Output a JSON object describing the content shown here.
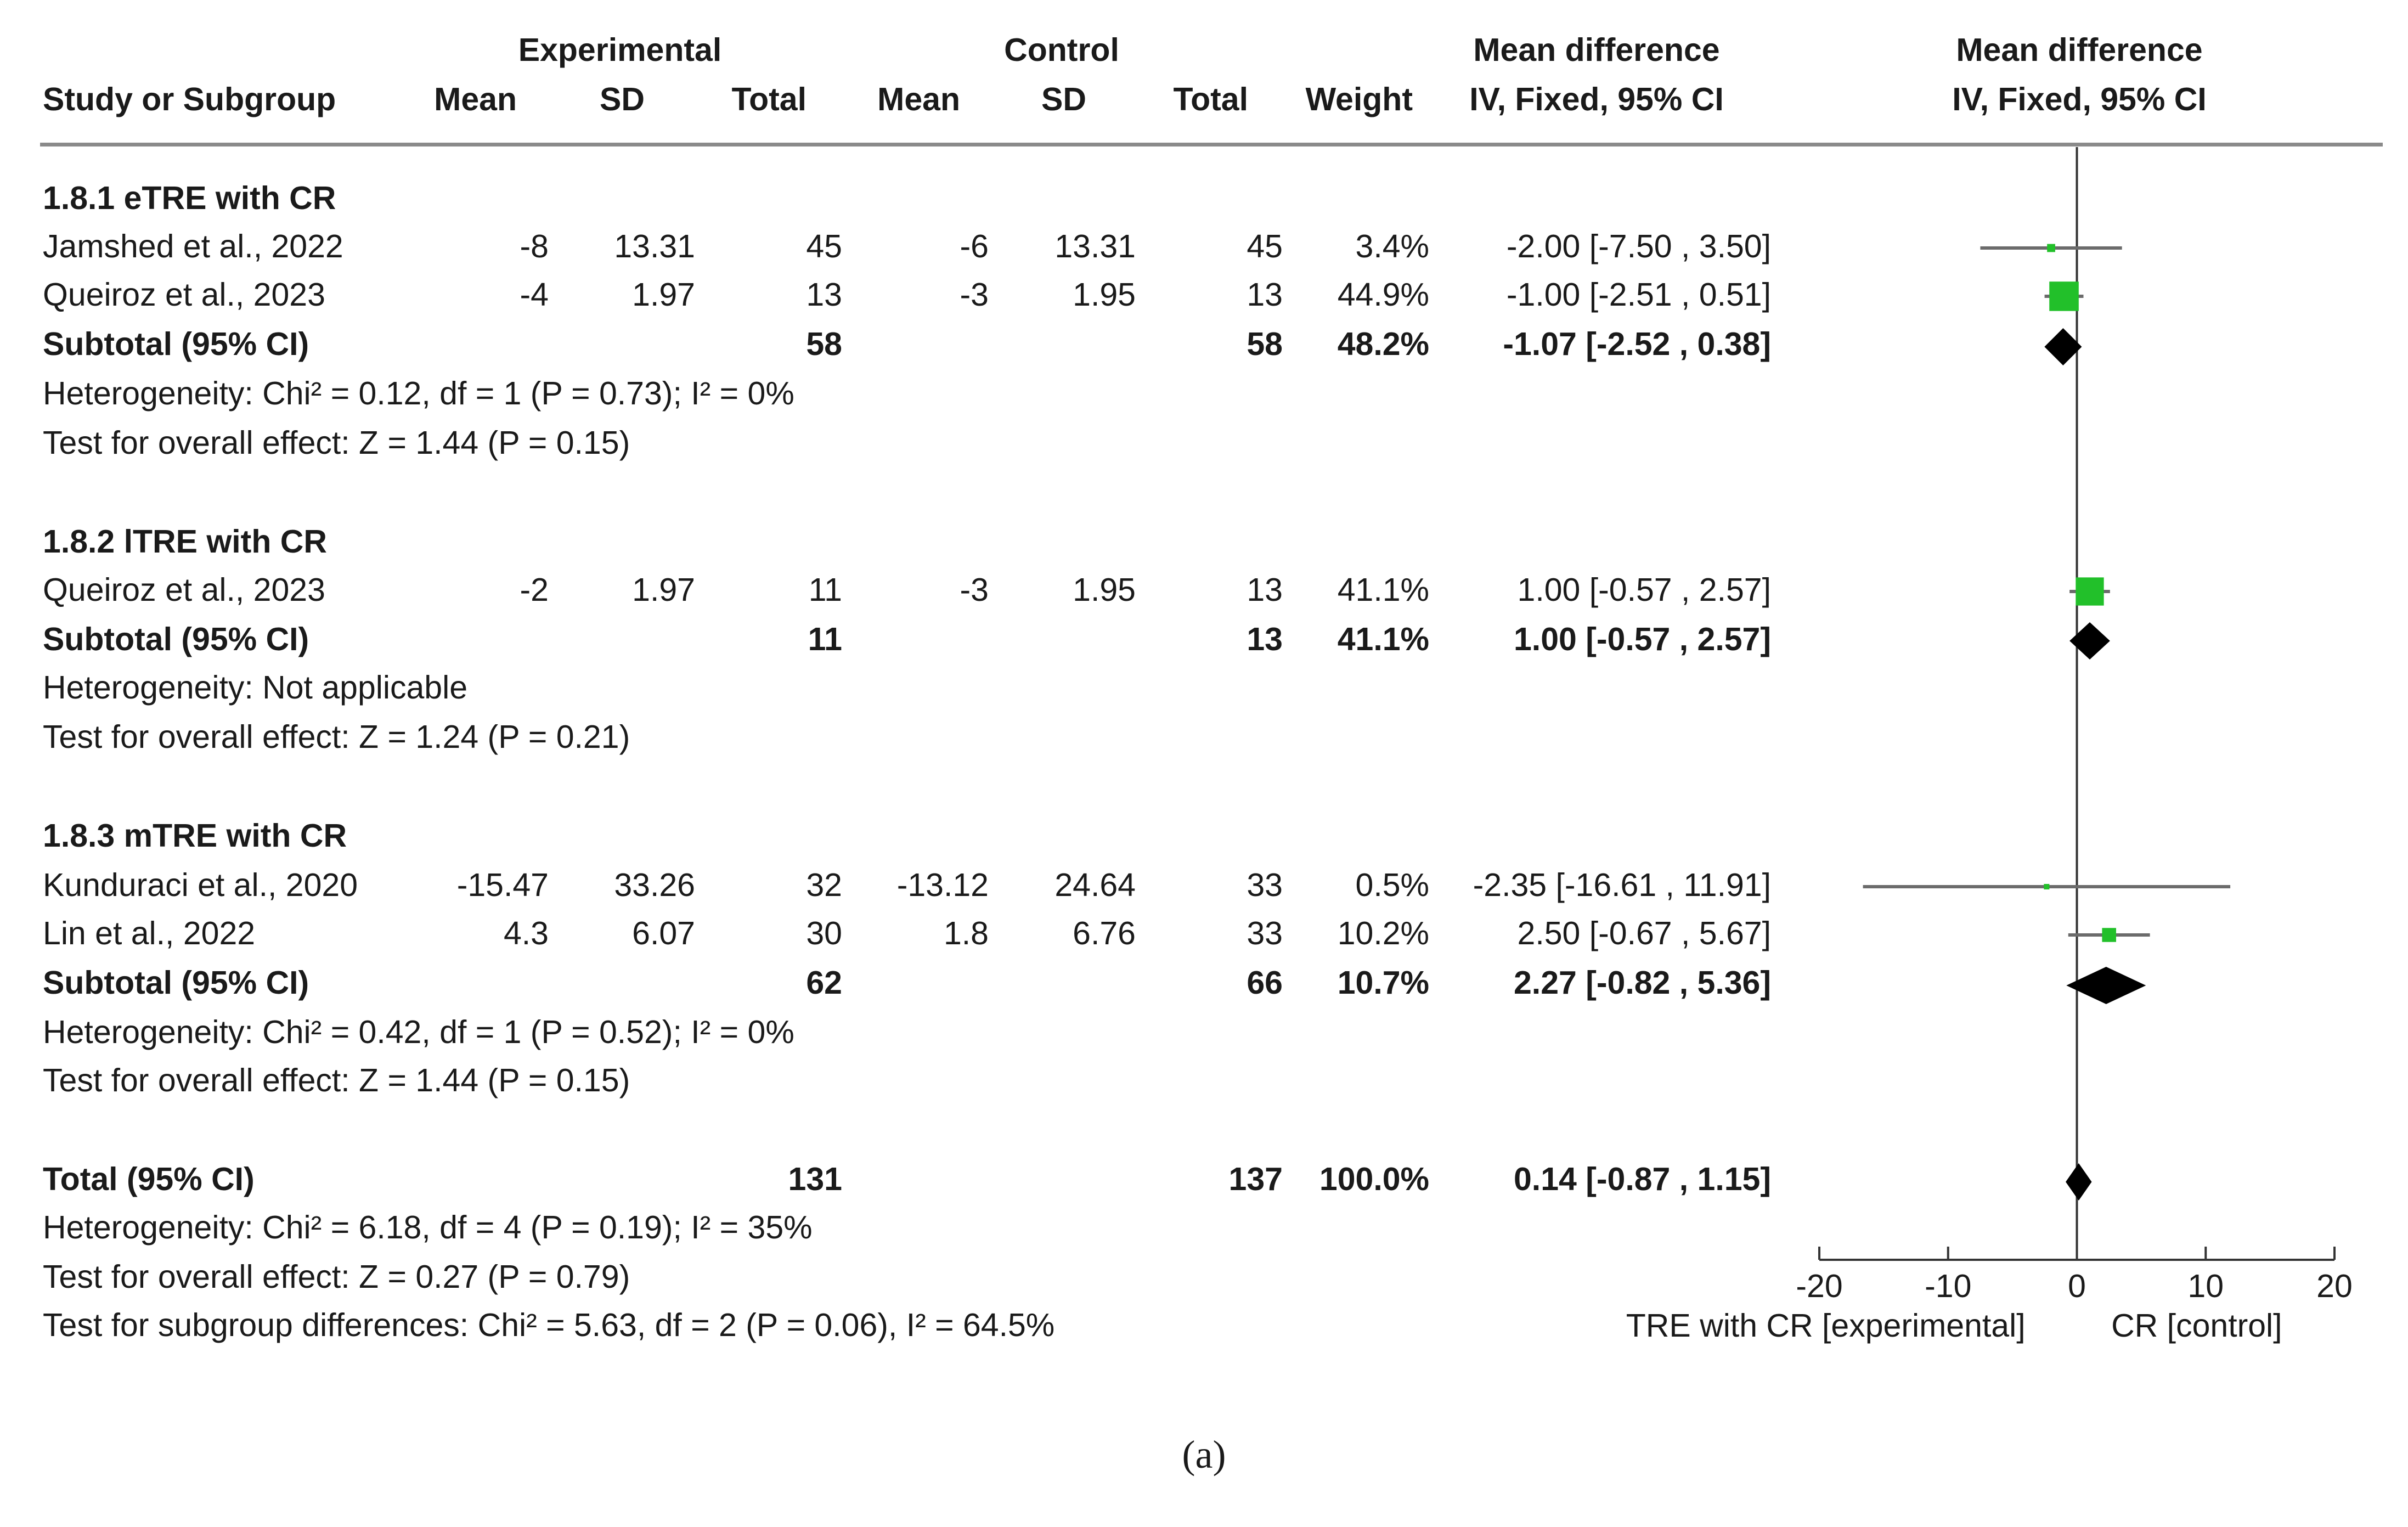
{
  "header": {
    "experimental": "Experimental",
    "control": "Control",
    "md_table": "Mean difference",
    "md_plot": "Mean difference",
    "study_col": "Study or Subgroup",
    "exp_mean": "Mean",
    "exp_sd": "SD",
    "exp_total": "Total",
    "ctl_mean": "Mean",
    "ctl_sd": "SD",
    "ctl_total": "Total",
    "weight": "Weight",
    "method_table": "IV, Fixed, 95% CI",
    "method_plot": "IV, Fixed, 95% CI"
  },
  "groups": [
    {
      "title": "1.8.1 eTRE with CR",
      "studies": [
        {
          "name": "Jamshed et al., 2022",
          "exp_mean": "-8",
          "exp_sd": "13.31",
          "exp_total": "45",
          "ctl_mean": "-6",
          "ctl_sd": "13.31",
          "ctl_total": "45",
          "weight": "3.4%",
          "ci": "-2.00 [-7.50 , 3.50]"
        },
        {
          "name": "Queiroz et al., 2023",
          "exp_mean": "-4",
          "exp_sd": "1.97",
          "exp_total": "13",
          "ctl_mean": "-3",
          "ctl_sd": "1.95",
          "ctl_total": "13",
          "weight": "44.9%",
          "ci": "-1.00 [-2.51 , 0.51]"
        }
      ],
      "subtotal": {
        "label": "Subtotal (95% CI)",
        "exp_total": "58",
        "ctl_total": "58",
        "weight": "48.2%",
        "ci": "-1.07 [-2.52 , 0.38]"
      },
      "heterogeneity": "Heterogeneity: Chi² = 0.12, df = 1 (P = 0.73); I² = 0%",
      "overall": "Test for overall effect: Z = 1.44 (P = 0.15)"
    },
    {
      "title": "1.8.2 lTRE with CR",
      "studies": [
        {
          "name": "Queiroz et al., 2023",
          "exp_mean": "-2",
          "exp_sd": "1.97",
          "exp_total": "11",
          "ctl_mean": "-3",
          "ctl_sd": "1.95",
          "ctl_total": "13",
          "weight": "41.1%",
          "ci": "1.00 [-0.57 , 2.57]"
        }
      ],
      "subtotal": {
        "label": "Subtotal (95% CI)",
        "exp_total": "11",
        "ctl_total": "13",
        "weight": "41.1%",
        "ci": "1.00 [-0.57 , 2.57]"
      },
      "heterogeneity": "Heterogeneity: Not applicable",
      "overall": "Test for overall effect: Z = 1.24 (P = 0.21)"
    },
    {
      "title": "1.8.3 mTRE with CR",
      "studies": [
        {
          "name": "Kunduraci et al., 2020",
          "exp_mean": "-15.47",
          "exp_sd": "33.26",
          "exp_total": "32",
          "ctl_mean": "-13.12",
          "ctl_sd": "24.64",
          "ctl_total": "33",
          "weight": "0.5%",
          "ci": "-2.35 [-16.61 , 11.91]"
        },
        {
          "name": "Lin et al., 2022",
          "exp_mean": "4.3",
          "exp_sd": "6.07",
          "exp_total": "30",
          "ctl_mean": "1.8",
          "ctl_sd": "6.76",
          "ctl_total": "33",
          "weight": "10.2%",
          "ci": "2.50 [-0.67 , 5.67]"
        }
      ],
      "subtotal": {
        "label": "Subtotal (95% CI)",
        "exp_total": "62",
        "ctl_total": "66",
        "weight": "10.7%",
        "ci": "2.27 [-0.82 , 5.36]"
      },
      "heterogeneity": "Heterogeneity: Chi² = 0.42, df = 1 (P = 0.52); I² = 0%",
      "overall": "Test for overall effect: Z = 1.44 (P = 0.15)"
    }
  ],
  "total": {
    "label": "Total (95% CI)",
    "exp_total": "131",
    "ctl_total": "137",
    "weight": "100.0%",
    "ci": "0.14 [-0.87 , 1.15]",
    "heterogeneity": "Heterogeneity: Chi² = 6.18, df = 4 (P = 0.19); I² = 35%",
    "overall": "Test for overall effect: Z = 0.27 (P = 0.79)",
    "subgroup": "Test for subgroup differences: Chi² = 5.63, df = 2 (P = 0.06), I² = 64.5%"
  },
  "caption": "(a)",
  "chart_data": {
    "type": "forest",
    "xlim": [
      -20,
      20
    ],
    "xticks": [
      -20,
      -10,
      0,
      10,
      20
    ],
    "xtick_labels": [
      "-20",
      "-10",
      "0",
      "10",
      "20"
    ],
    "left_label": "TRE with CR [experimental]",
    "right_label": "CR [control]",
    "study_color": "#22c02a",
    "diamond_color": "#000000",
    "studies": [
      {
        "name": "Jamshed et al., 2022",
        "group": "1.8.1",
        "estimate": -2.0,
        "lower": -7.5,
        "upper": 3.5,
        "weight": 3.4
      },
      {
        "name": "Queiroz et al., 2023",
        "group": "1.8.1",
        "estimate": -1.0,
        "lower": -2.51,
        "upper": 0.51,
        "weight": 44.9
      },
      {
        "name": "Queiroz et al., 2023",
        "group": "1.8.2",
        "estimate": 1.0,
        "lower": -0.57,
        "upper": 2.57,
        "weight": 41.1
      },
      {
        "name": "Kunduraci et al., 2020",
        "group": "1.8.3",
        "estimate": -2.35,
        "lower": -16.61,
        "upper": 11.91,
        "weight": 0.5
      },
      {
        "name": "Lin et al., 2022",
        "group": "1.8.3",
        "estimate": 2.5,
        "lower": -0.67,
        "upper": 5.67,
        "weight": 10.2
      }
    ],
    "summaries": [
      {
        "name": "Subtotal 1.8.1",
        "estimate": -1.07,
        "lower": -2.52,
        "upper": 0.38
      },
      {
        "name": "Subtotal 1.8.2",
        "estimate": 1.0,
        "lower": -0.57,
        "upper": 2.57
      },
      {
        "name": "Subtotal 1.8.3",
        "estimate": 2.27,
        "lower": -0.82,
        "upper": 5.36
      },
      {
        "name": "Total",
        "estimate": 0.14,
        "lower": -0.87,
        "upper": 1.15
      }
    ]
  }
}
